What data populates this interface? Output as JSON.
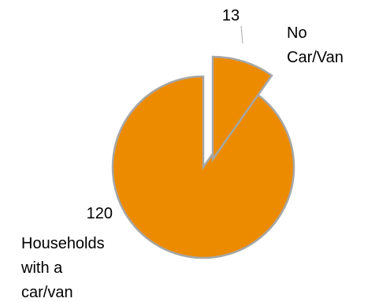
{
  "chart_data": {
    "type": "pie",
    "exploded": true,
    "slices": [
      {
        "value": 120,
        "label": [
          "Households",
          "with a",
          "car/van"
        ],
        "color": "#ed8b00"
      },
      {
        "value": 13,
        "label": [
          "No",
          "Car/Van"
        ],
        "color": "#ed8b00"
      }
    ],
    "slice_border_color": "#a6a6a6"
  }
}
